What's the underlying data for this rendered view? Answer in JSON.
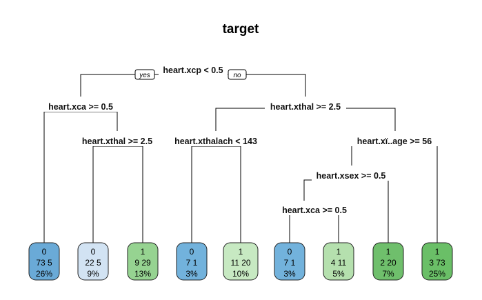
{
  "title": "target",
  "branch_labels": {
    "yes": "yes",
    "no": "no"
  },
  "splits": [
    {
      "id": "root",
      "label": "heart.xcp < 0.5"
    },
    {
      "id": "s_ca1",
      "label": "heart.xca >= 0.5"
    },
    {
      "id": "s_thal1",
      "label": "heart.xthal >= 2.5"
    },
    {
      "id": "s_thal2",
      "label": "heart.xthal >= 2.5"
    },
    {
      "id": "s_thalach",
      "label": "heart.xthalach < 143"
    },
    {
      "id": "s_age",
      "label": "heart.xï..age >= 56"
    },
    {
      "id": "s_sex",
      "label": "heart.xsex >= 0.5"
    },
    {
      "id": "s_ca2",
      "label": "heart.xca >= 0.5"
    }
  ],
  "leaves": [
    {
      "class": "0",
      "counts": "73  5",
      "pct": "26%",
      "color": "#6aaad7"
    },
    {
      "class": "0",
      "counts": "22  5",
      "pct": "9%",
      "color": "#d2e3f3"
    },
    {
      "class": "1",
      "counts": "9  29",
      "pct": "13%",
      "color": "#96d391"
    },
    {
      "class": "0",
      "counts": "7  1",
      "pct": "3%",
      "color": "#72b2dc"
    },
    {
      "class": "1",
      "counts": "11  20",
      "pct": "10%",
      "color": "#c7e9c2"
    },
    {
      "class": "0",
      "counts": "7  1",
      "pct": "3%",
      "color": "#72b2dc"
    },
    {
      "class": "1",
      "counts": "4  11",
      "pct": "5%",
      "color": "#b5e0ae"
    },
    {
      "class": "1",
      "counts": "2  20",
      "pct": "7%",
      "color": "#6fbf6c"
    },
    {
      "class": "1",
      "counts": "3  73",
      "pct": "25%",
      "color": "#6abf67"
    }
  ]
}
